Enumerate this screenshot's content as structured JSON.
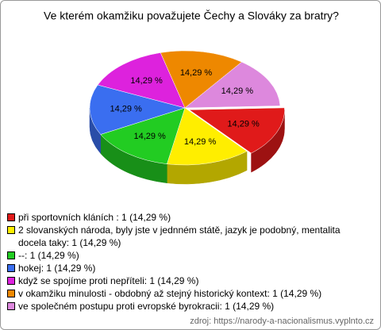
{
  "chart_data": {
    "type": "pie",
    "title": "Ve kterém okamžiku považujete Čechy a Slováky za bratry?",
    "categories": [
      "při sportovních kláních : 1 (14,29 %)",
      "2 slovanských národa, byly jste v jednném státě, jazyk je podobný, mentalita docela taky: 1 (14,29 %)",
      "--: 1 (14,29 %)",
      "hokej: 1 (14,29 %)",
      "když se spojíme proti nepříteli: 1 (14,29 %)",
      "v okamžiku minulosti - obdobný až stejný historický kontext: 1 (14,29 %)",
      "ve společném postupu proti evropské byrokracii: 1 (14,29 %)"
    ],
    "values": [
      14.29,
      14.29,
      14.29,
      14.29,
      14.29,
      14.29,
      14.29
    ],
    "value_labels": [
      "14,29 %",
      "14,29 %",
      "14,29 %",
      "14,29 %",
      "14,29 %",
      "14,29 %",
      "14,29 %"
    ],
    "colors": [
      "#e01a1a",
      "#ffee00",
      "#22cc22",
      "#3a6ef0",
      "#dd22dd",
      "#ee8800",
      "#dd88dd"
    ],
    "source": "zdroj: https://narody-a-nacionalismus.vyplnto.cz"
  }
}
